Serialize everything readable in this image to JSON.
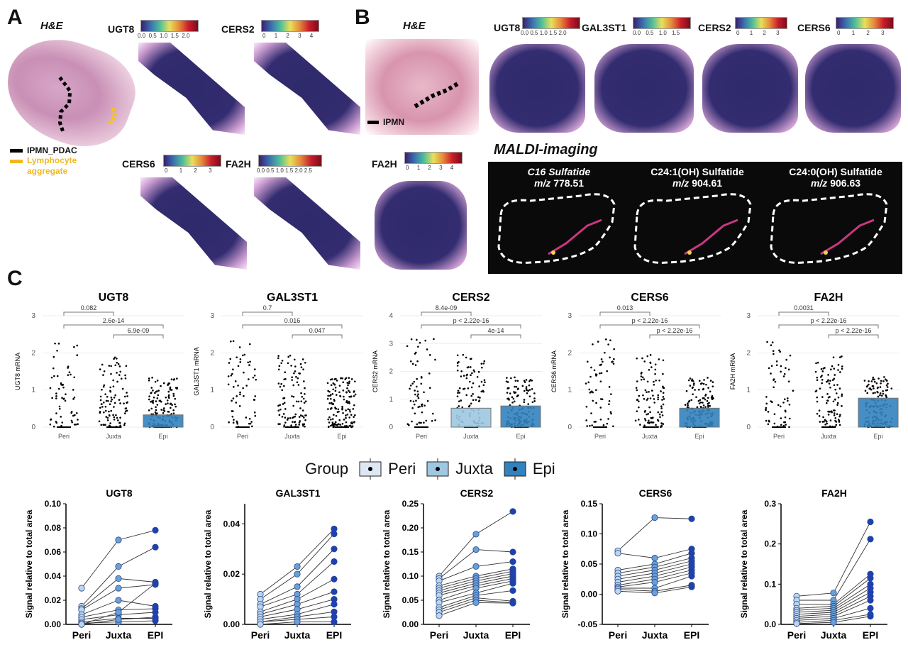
{
  "panels": {
    "a": "A",
    "b": "B",
    "c": "C"
  },
  "panelA": {
    "he_title": "H&E",
    "legend_ipmn": "IPMN_PDAC",
    "legend_lymph": "Lymphocyte aggregate",
    "maps": [
      {
        "gene": "UGT8",
        "ticks": [
          "0.0",
          "0.5",
          "1.0",
          "1.5",
          "2.0"
        ]
      },
      {
        "gene": "CERS2",
        "ticks": [
          "0",
          "1",
          "2",
          "3",
          "4"
        ]
      },
      {
        "gene": "CERS6",
        "ticks": [
          "0",
          "1",
          "2",
          "3"
        ]
      },
      {
        "gene": "FA2H",
        "ticks": [
          "0.0",
          "0.5",
          "1.0",
          "1.5",
          "2.0",
          "2.5"
        ]
      }
    ]
  },
  "panelB": {
    "he_title": "H&E",
    "legend_ipmn": "IPMN",
    "maps": [
      {
        "gene": "UGT8",
        "ticks": [
          "0.0",
          "0.5",
          "1.0",
          "1.5",
          "2.0"
        ]
      },
      {
        "gene": "GAL3ST1",
        "ticks": [
          "0.0",
          "0.5",
          "1.0",
          "1.5"
        ]
      },
      {
        "gene": "CERS2",
        "ticks": [
          "0",
          "1",
          "2",
          "3"
        ]
      },
      {
        "gene": "CERS6",
        "ticks": [
          "0",
          "1",
          "2",
          "3"
        ]
      }
    ],
    "fa2h": {
      "gene": "FA2H",
      "ticks": [
        "0",
        "1",
        "2",
        "3",
        "4"
      ]
    },
    "maldi_title": "MALDI-imaging",
    "maldi": [
      {
        "name": "C16 Sulfatide",
        "mz": "778.51"
      },
      {
        "name": "C24:1(OH) Sulfatide",
        "mz": "904.61"
      },
      {
        "name": "C24:0(OH) Sulfatide",
        "mz": "906.63"
      }
    ],
    "mz_label": "m/z"
  },
  "legend": {
    "title": "Group",
    "items": [
      "Peri",
      "Juxta",
      "Epi"
    ]
  },
  "colors": {
    "peri": "#dde8f4",
    "juxta": "#9ec8e2",
    "epi": "#3282bd",
    "dark_blue": "#1f3fb5",
    "mid_blue": "#6a9fd8",
    "light_blue": "#bcd6ee"
  },
  "chart_data": [
    {
      "type": "box",
      "title": "UGT8",
      "ylabel": "UGT8 mRNA",
      "categories": [
        "Peri",
        "Juxta",
        "Epi"
      ],
      "ylim": [
        0,
        3
      ],
      "yticks": [
        0,
        1,
        2,
        3
      ],
      "comparisons": [
        {
          "pair": [
            "Peri",
            "Juxta"
          ],
          "p": "0.082"
        },
        {
          "pair": [
            "Peri",
            "Epi"
          ],
          "p": "2.6e-14"
        },
        {
          "pair": [
            "Juxta",
            "Epi"
          ],
          "p": "6.9e-09"
        }
      ]
    },
    {
      "type": "box",
      "title": "GAL3ST1",
      "ylabel": "GAL3ST1 mRNA",
      "categories": [
        "Peri",
        "Juxta",
        "Epi"
      ],
      "ylim": [
        0,
        3
      ],
      "yticks": [
        0,
        1,
        2,
        3
      ],
      "comparisons": [
        {
          "pair": [
            "Peri",
            "Juxta"
          ],
          "p": "0.7"
        },
        {
          "pair": [
            "Peri",
            "Epi"
          ],
          "p": "0.016"
        },
        {
          "pair": [
            "Juxta",
            "Epi"
          ],
          "p": "0.047"
        }
      ]
    },
    {
      "type": "box",
      "title": "CERS2",
      "ylabel": "CERS2 mRNA",
      "categories": [
        "Peri",
        "Juxta",
        "Epi"
      ],
      "ylim": [
        0,
        4
      ],
      "yticks": [
        0,
        1,
        2,
        3,
        4
      ],
      "comparisons": [
        {
          "pair": [
            "Peri",
            "Juxta"
          ],
          "p": "8.4e-09"
        },
        {
          "pair": [
            "Peri",
            "Epi"
          ],
          "p": "p < 2.22e-16"
        },
        {
          "pair": [
            "Juxta",
            "Epi"
          ],
          "p": "4e-14"
        }
      ]
    },
    {
      "type": "box",
      "title": "CERS6",
      "ylabel": "CERS6 mRNA",
      "categories": [
        "Peri",
        "Juxta",
        "Epi"
      ],
      "ylim": [
        0,
        3
      ],
      "yticks": [
        0,
        1,
        2,
        3
      ],
      "comparisons": [
        {
          "pair": [
            "Peri",
            "Juxta"
          ],
          "p": "0.013"
        },
        {
          "pair": [
            "Peri",
            "Epi"
          ],
          "p": "p < 2.22e-16"
        },
        {
          "pair": [
            "Juxta",
            "Epi"
          ],
          "p": "p < 2.22e-16"
        }
      ]
    },
    {
      "type": "box",
      "title": "FA2H",
      "ylabel": "FA2H mRNA",
      "categories": [
        "Peri",
        "Juxta",
        "Epi"
      ],
      "ylim": [
        0,
        3
      ],
      "yticks": [
        0,
        1,
        2,
        3
      ],
      "comparisons": [
        {
          "pair": [
            "Peri",
            "Juxta"
          ],
          "p": "0.0031"
        },
        {
          "pair": [
            "Peri",
            "Epi"
          ],
          "p": "p < 2.22e-16"
        },
        {
          "pair": [
            "Juxta",
            "Epi"
          ],
          "p": "p < 2.22e-16"
        }
      ]
    },
    {
      "type": "paired-line",
      "title": "UGT8",
      "ylabel": "Signal relative to total area",
      "categories": [
        "Peri",
        "Juxta",
        "EPI"
      ],
      "ylim": [
        0,
        0.1
      ],
      "yticks": [
        "0.00",
        "0.02",
        "0.04",
        "0.06",
        "0.08",
        "0.10"
      ],
      "pairs": [
        [
          0.03,
          0.07,
          0.078
        ],
        [
          0.015,
          0.048,
          0.064
        ],
        [
          0.013,
          0.038,
          0.035
        ],
        [
          0.012,
          0.03,
          0.033
        ],
        [
          0.008,
          0.02,
          0.015
        ],
        [
          0.006,
          0.012,
          0.013
        ],
        [
          0.004,
          0.008,
          0.01
        ],
        [
          0.002,
          0.005,
          0.005
        ],
        [
          0.001,
          0.002,
          0.003
        ],
        [
          0.0,
          0.01,
          0.034
        ],
        [
          0.0,
          0.004,
          0.006
        ]
      ]
    },
    {
      "type": "paired-line",
      "title": "GAL3ST1",
      "ylabel": "Signal relative to total area",
      "categories": [
        "Peri",
        "Juxta",
        "EPI"
      ],
      "ylim": [
        0,
        0.048
      ],
      "yticks": [
        "0.00",
        "0.02",
        "0.04"
      ],
      "pairs": [
        [
          0.012,
          0.023,
          0.038
        ],
        [
          0.01,
          0.02,
          0.036
        ],
        [
          0.008,
          0.015,
          0.03
        ],
        [
          0.007,
          0.012,
          0.025
        ],
        [
          0.005,
          0.01,
          0.018
        ],
        [
          0.004,
          0.008,
          0.013
        ],
        [
          0.003,
          0.006,
          0.01
        ],
        [
          0.002,
          0.004,
          0.008
        ],
        [
          0.001,
          0.003,
          0.005
        ],
        [
          0.001,
          0.002,
          0.003
        ],
        [
          0.0,
          0.001,
          0.001
        ]
      ]
    },
    {
      "type": "paired-line",
      "title": "CERS2",
      "ylabel": "Signal relative to total area",
      "categories": [
        "Peri",
        "Juxta",
        "EPI"
      ],
      "ylim": [
        0,
        0.25
      ],
      "yticks": [
        "0.00",
        "0.05",
        "0.10",
        "0.15",
        "0.20",
        "0.25"
      ],
      "pairs": [
        [
          0.1,
          0.187,
          0.234
        ],
        [
          0.095,
          0.155,
          0.15
        ],
        [
          0.09,
          0.12,
          0.13
        ],
        [
          0.08,
          0.1,
          0.115
        ],
        [
          0.075,
          0.095,
          0.11
        ],
        [
          0.07,
          0.09,
          0.105
        ],
        [
          0.065,
          0.085,
          0.1
        ],
        [
          0.06,
          0.08,
          0.095
        ],
        [
          0.05,
          0.075,
          0.09
        ],
        [
          0.045,
          0.065,
          0.085
        ],
        [
          0.035,
          0.06,
          0.07
        ],
        [
          0.03,
          0.055,
          0.048
        ],
        [
          0.025,
          0.05,
          0.045
        ],
        [
          0.018,
          0.045,
          0.044
        ]
      ]
    },
    {
      "type": "paired-line",
      "title": "CERS6",
      "ylabel": "Signal relative to total area",
      "categories": [
        "Peri",
        "Juxta",
        "EPI"
      ],
      "ylim": [
        -0.05,
        0.15
      ],
      "yticks": [
        "-0.05",
        "0.00",
        "0.05",
        "0.10",
        "0.15"
      ],
      "pairs": [
        [
          0.072,
          0.127,
          0.125
        ],
        [
          0.068,
          0.06,
          0.075
        ],
        [
          0.04,
          0.05,
          0.068
        ],
        [
          0.035,
          0.045,
          0.06
        ],
        [
          0.03,
          0.04,
          0.055
        ],
        [
          0.025,
          0.035,
          0.05
        ],
        [
          0.02,
          0.03,
          0.045
        ],
        [
          0.015,
          0.025,
          0.04
        ],
        [
          0.012,
          0.02,
          0.035
        ],
        [
          0.01,
          0.01,
          0.03
        ],
        [
          0.008,
          0.005,
          0.015
        ],
        [
          0.005,
          0.002,
          0.012
        ]
      ]
    },
    {
      "type": "paired-line",
      "title": "FA2H",
      "ylabel": "Signal relative to total area",
      "categories": [
        "Peri",
        "Juxta",
        "EPI"
      ],
      "ylim": [
        0,
        0.3
      ],
      "yticks": [
        "0.0",
        "0.1",
        "0.2",
        "0.3"
      ],
      "pairs": [
        [
          0.07,
          0.078,
          0.255
        ],
        [
          0.06,
          0.06,
          0.212
        ],
        [
          0.05,
          0.05,
          0.125
        ],
        [
          0.04,
          0.045,
          0.115
        ],
        [
          0.035,
          0.04,
          0.1
        ],
        [
          0.03,
          0.035,
          0.09
        ],
        [
          0.025,
          0.03,
          0.08
        ],
        [
          0.02,
          0.025,
          0.07
        ],
        [
          0.015,
          0.02,
          0.06
        ],
        [
          0.01,
          0.015,
          0.04
        ],
        [
          0.005,
          0.01,
          0.025
        ],
        [
          0.002,
          0.005,
          0.02
        ]
      ]
    }
  ]
}
